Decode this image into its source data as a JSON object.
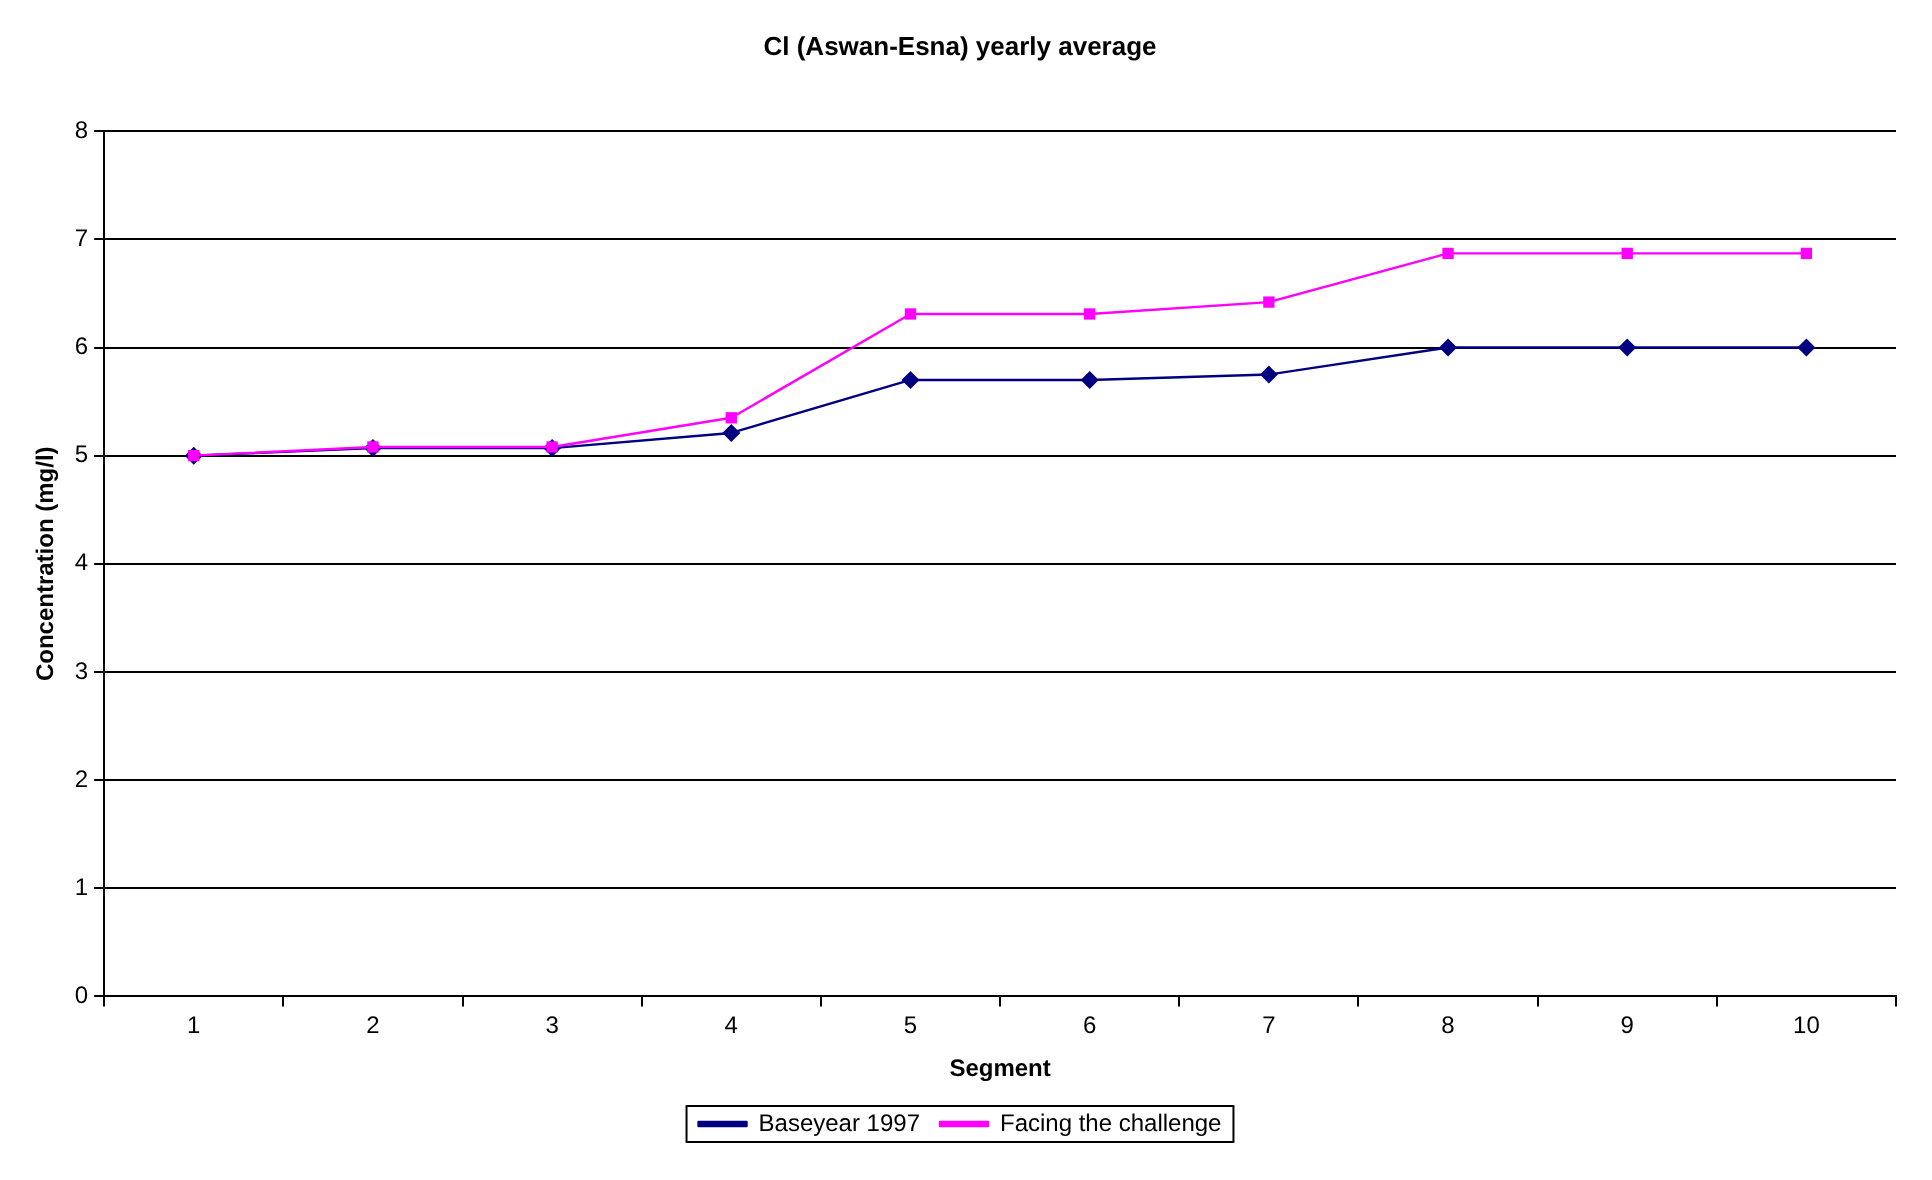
{
  "chart_data": {
    "type": "line",
    "title": "Cl (Aswan-Esna) yearly average",
    "xlabel": "Segment",
    "ylabel": "Concentration (mg/l)",
    "categories": [
      "1",
      "2",
      "3",
      "4",
      "5",
      "6",
      "7",
      "8",
      "9",
      "10"
    ],
    "series": [
      {
        "name": "Baseyear 1997",
        "color": "#000080",
        "marker": "diamond",
        "values": [
          5.0,
          5.07,
          5.07,
          5.21,
          5.7,
          5.7,
          5.75,
          6.0,
          6.0,
          6.0
        ]
      },
      {
        "name": "Facing the challenge",
        "color": "#ff00ff",
        "marker": "square",
        "values": [
          5.0,
          5.08,
          5.08,
          5.35,
          6.31,
          6.31,
          6.42,
          6.87,
          6.87,
          6.87
        ]
      }
    ],
    "ylim": [
      0,
      8
    ],
    "yticks": [
      0,
      1,
      2,
      3,
      4,
      5,
      6,
      7,
      8
    ],
    "grid": "y",
    "legend": "bottom",
    "line_style": "solid"
  }
}
